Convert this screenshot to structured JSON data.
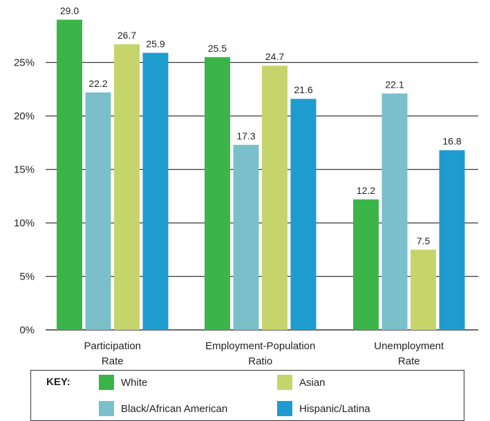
{
  "chart_data": {
    "type": "bar",
    "title": "",
    "xlabel": "",
    "ylabel": "",
    "ylim": [
      0,
      30
    ],
    "yticks": [
      "0%",
      "5%",
      "10%",
      "15%",
      "20%",
      "25%"
    ],
    "ytick_values": [
      0,
      5,
      10,
      15,
      20,
      25
    ],
    "grid": true,
    "legend_position": "bottom",
    "categories": [
      [
        "Participation",
        "Rate"
      ],
      [
        "Employment-Population",
        "Ratio"
      ],
      [
        "Unemployment",
        "Rate"
      ]
    ],
    "series": [
      {
        "name": "White",
        "color": "#3bb54a",
        "values": [
          29.0,
          25.5,
          12.2
        ],
        "labels": [
          "29.0",
          "25.5",
          "12.2"
        ]
      },
      {
        "name": "Black/African American",
        "color": "#7bbfcb",
        "values": [
          22.2,
          17.3,
          22.1
        ],
        "labels": [
          "22.2",
          "17.3",
          "22.1"
        ]
      },
      {
        "name": "Asian",
        "color": "#c5d56c",
        "values": [
          26.7,
          24.7,
          7.5
        ],
        "labels": [
          "26.7",
          "24.7",
          "7.5"
        ]
      },
      {
        "name": "Hispanic/Latina",
        "color": "#1f9ccf",
        "values": [
          25.9,
          21.6,
          16.8
        ],
        "labels": [
          "25.9",
          "21.6",
          "16.8"
        ]
      }
    ]
  },
  "legend": {
    "title": "KEY:",
    "items": [
      {
        "label": "White",
        "color": "#3bb54a"
      },
      {
        "label": "Asian",
        "color": "#c5d56c"
      },
      {
        "label": "Black/African American",
        "color": "#7bbfcb"
      },
      {
        "label": "Hispanic/Latina",
        "color": "#1f9ccf"
      }
    ]
  }
}
